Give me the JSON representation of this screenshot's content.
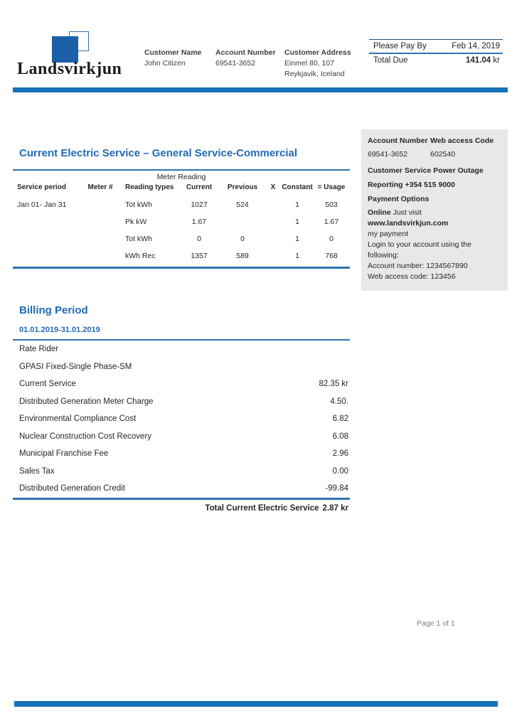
{
  "brand": {
    "name": "Landsvirkjun"
  },
  "header": {
    "customer_name_label": "Customer Name",
    "customer_name": "John Citizen",
    "account_number_label": "Account Number",
    "account_number": "69541-3652",
    "customer_address_label": "Customer Address",
    "address_line1": "Einmel 80, 107",
    "address_line2": "Reykjavik, Iceland",
    "pay_by_label": "Please Pay By",
    "pay_by_date": "Feb 14, 2019",
    "total_due_label": "Total Due",
    "total_due_amount": "141.04",
    "total_due_currency": "kr"
  },
  "meter_section": {
    "title": "Current Electric Service – General Service-Commercial",
    "group_header": "Meter Reading",
    "columns": [
      "Service period",
      "Meter #",
      "Reading types",
      "Current",
      "Previous",
      "X",
      "Constant",
      "= Usage"
    ],
    "rows": [
      [
        "Jan  01- Jan 31",
        "",
        "Tot kWh",
        "1027",
        "524",
        "",
        "1",
        "503"
      ],
      [
        "",
        "",
        "Pk kW",
        "1.67",
        "",
        "",
        "1",
        "1.67"
      ],
      [
        "",
        "",
        "Tot kWh",
        "0",
        "0",
        "",
        "1",
        "0"
      ],
      [
        "",
        "",
        "kWh Rec",
        "1357",
        "589",
        "",
        "1",
        "768"
      ]
    ]
  },
  "sidebar": {
    "account_number_label": "Account Number",
    "web_access_label": "Web access Code",
    "account_number": "69541-3652",
    "web_access_code": "602540",
    "customer_service_line1": "Customer Service Power Outage",
    "customer_service_line2": "Reporting +354 515 9000",
    "payment_options_label": "Payment Options",
    "online_bold": "Online",
    "online_text": " Just visit ",
    "online_url": "www.landsvirkjun.com",
    "online_lines": [
      "my payment",
      "Login to your account using the",
      "following:",
      "Account number: 1234567890",
      "Web access code: 123456"
    ]
  },
  "billing": {
    "title": "Billing Period",
    "period": "01.01.2019-31.01.2019",
    "lines": [
      {
        "label": "Rate Rider",
        "amount": ""
      },
      {
        "label": "GPASI Fixed-Single Phase-SM",
        "amount": ""
      },
      {
        "label": "Current Service",
        "amount": "82.35 kr"
      },
      {
        "label": "Distributed Generation Meter Charge",
        "amount": "4.50."
      },
      {
        "label": "Environmental Compliance Cost",
        "amount": "6.82"
      },
      {
        "label": "Nuclear Construction Cost Recovery",
        "amount": "6.08"
      },
      {
        "label": "Municipal Franchise Fee",
        "amount": "2.96"
      },
      {
        "label": "Sales Tax",
        "amount": "0.00"
      },
      {
        "label": "Distributed Generation Credit",
        "amount": "-99.84"
      }
    ],
    "total_label": "Total Current Electric Service",
    "total_amount": "2.87 kr"
  },
  "footer": {
    "page_label": "Page 1 of 1"
  },
  "colors": {
    "accent_blue": "#1572b8",
    "heading_blue": "#1f6bb5",
    "box_gray": "#e9e8e8",
    "logo_blue": "#1b5fa6"
  }
}
